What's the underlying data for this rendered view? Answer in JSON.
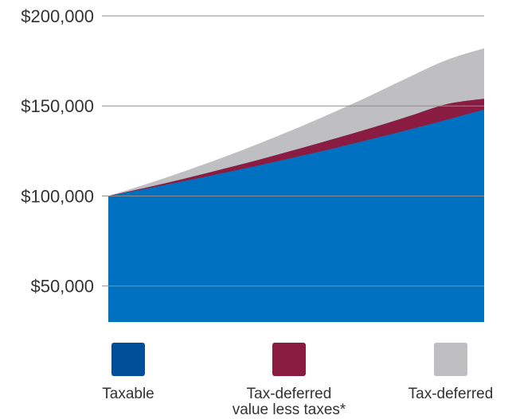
{
  "chart_data": {
    "type": "area",
    "title": "",
    "xlabel": "",
    "ylabel": "",
    "ylim": [
      30000,
      200000
    ],
    "yticks": [
      50000,
      100000,
      150000,
      200000
    ],
    "ytick_labels": [
      "$50,000",
      "$100,000",
      "$150,000",
      "$200,000"
    ],
    "grid": true,
    "legend_position": "bottom",
    "x": [
      0,
      1,
      2,
      3,
      4,
      5,
      6,
      7,
      8,
      9,
      10
    ],
    "series": [
      {
        "name": "Taxable",
        "color": "#0071c1",
        "legend_color": "#004f98",
        "values": [
          100000,
          104000,
          108200,
          112500,
          117000,
          121700,
          126500,
          131600,
          136800,
          142300,
          148000
        ]
      },
      {
        "name": "Tax-deferred value less taxes*",
        "color": "#8a1c42",
        "legend_color": "#8a1c42",
        "values": [
          100000,
          104600,
          109500,
          114700,
          120100,
          125800,
          131700,
          137800,
          144300,
          151000,
          154000
        ]
      },
      {
        "name": "Tax-deferred",
        "color": "#bfbfc1",
        "legend_color": "#bfbfc1",
        "values": [
          100000,
          106500,
          113500,
          121000,
          129000,
          137500,
          146500,
          156000,
          166000,
          175500,
          182000
        ]
      }
    ]
  },
  "legend": [
    {
      "label_lines": [
        "Taxable"
      ],
      "color": "#004f98"
    },
    {
      "label_lines": [
        "Tax-deferred",
        "value less taxes*"
      ],
      "color": "#8a1c42"
    },
    {
      "label_lines": [
        "Tax-deferred"
      ],
      "color": "#bfbfc1"
    }
  ]
}
